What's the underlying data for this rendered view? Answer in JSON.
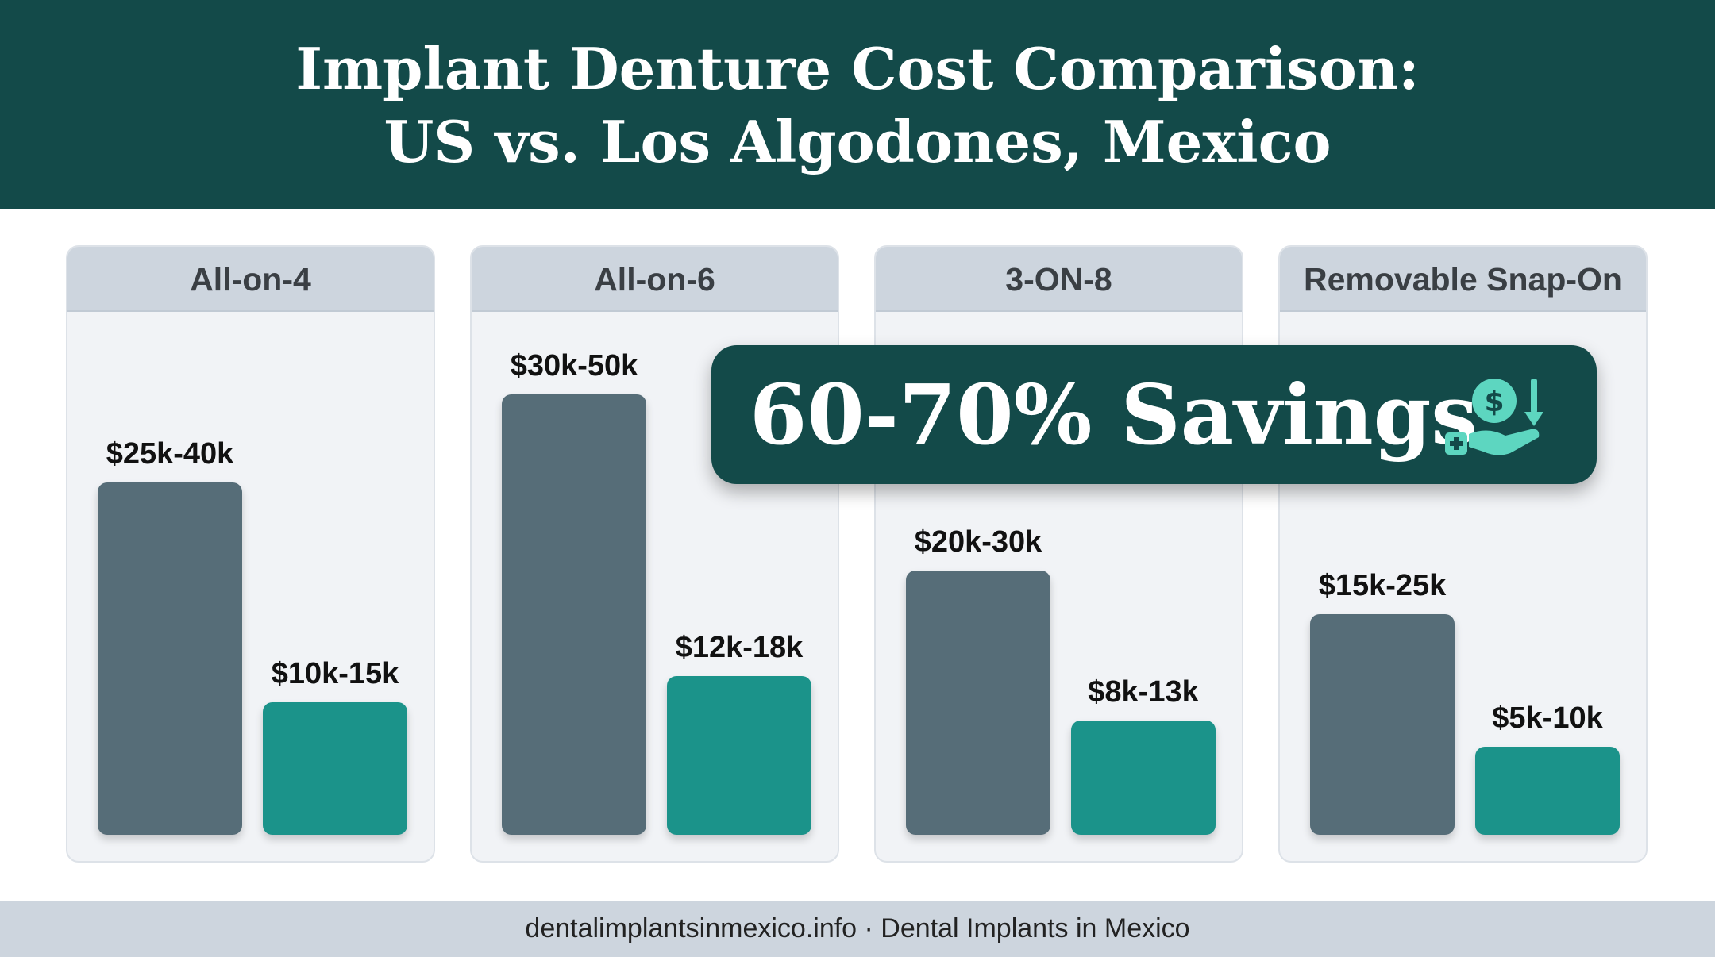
{
  "header": {
    "title_line_1": "Implant Denture Cost Comparison:",
    "title_line_2": "US vs. Los Algodones, Mexico"
  },
  "callout": {
    "text": "60-70% Savings",
    "icon": "hand-coin-savings-icon"
  },
  "footer": {
    "text": "dentalimplantsinmexico.info · Dental Implants in Mexico"
  },
  "colors": {
    "header_bg": "#134a49",
    "us_bar": "#566d78",
    "mexico_bar": "#1b938a",
    "panel_bg": "#f1f3f6",
    "panel_header_bg": "#cdd5de",
    "icon_accent": "#5dd6c0"
  },
  "chart_data": {
    "type": "bar",
    "categories": [
      "All-on-4",
      "All-on-6",
      "3-ON-8",
      "Removable Snap-On"
    ],
    "series": [
      {
        "values": [
          [
            25000,
            40000
          ],
          [
            30000,
            50000
          ],
          [
            20000,
            30000
          ],
          [
            15000,
            25000
          ]
        ],
        "labels": [
          "$25k-40k",
          "$30k-50k",
          "$20k-30k",
          "$15k-25k"
        ]
      },
      {
        "values": [
          [
            10000,
            15000
          ],
          [
            12000,
            18000
          ],
          [
            8000,
            13000
          ],
          [
            5000,
            10000
          ]
        ],
        "labels": [
          "$10k-15k",
          "$12k-18k",
          "$8k-13k",
          "$5k-10k"
        ]
      }
    ],
    "title": "Implant Denture Cost Comparison: US vs. Los Algodones, Mexico",
    "annotation": "60-70% Savings",
    "grid": false,
    "legend": "none"
  }
}
